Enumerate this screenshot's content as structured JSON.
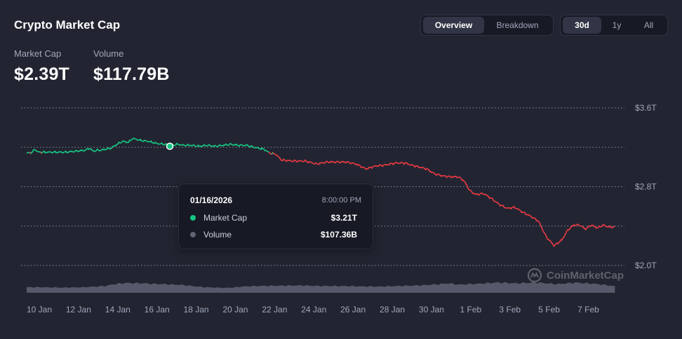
{
  "header": {
    "title": "Crypto Market Cap",
    "stats": [
      {
        "label": "Market Cap",
        "value": "$2.39T"
      },
      {
        "label": "Volume",
        "value": "$117.79B"
      }
    ]
  },
  "view_tabs": {
    "items": [
      "Overview",
      "Breakdown"
    ],
    "active": "Overview"
  },
  "range_tabs": {
    "items": [
      "30d",
      "1y",
      "All"
    ],
    "active": "30d"
  },
  "tooltip": {
    "date": "01/16/2026",
    "time": "8:00:00 PM",
    "rows": [
      {
        "name": "Market Cap",
        "value": "$3.21T"
      },
      {
        "name": "Volume",
        "value": "$107.36B"
      }
    ]
  },
  "watermark": "CoinMarketCap",
  "colors": {
    "background": "#222531",
    "up": "#16c784",
    "down": "#ea3943",
    "volume": "#5f6373",
    "grid": "#8a8fa0"
  },
  "chart_data": {
    "type": "line",
    "y_unit": "T USD",
    "ylim": [
      2.0,
      3.6
    ],
    "y_ticks": [
      {
        "value": 3.6,
        "label": "$3.6T"
      },
      {
        "value": 2.8,
        "label": "$2.8T"
      },
      {
        "value": 2.0,
        "label": "$2.0T"
      }
    ],
    "x_ticks": [
      "10 Jan",
      "12 Jan",
      "14 Jan",
      "16 Jan",
      "18 Jan",
      "20 Jan",
      "22 Jan",
      "24 Jan",
      "26 Jan",
      "28 Jan",
      "30 Jan",
      "1 Feb",
      "3 Feb",
      "5 Feb",
      "7 Feb"
    ],
    "xlim_days": [
      0,
      30.2
    ],
    "baseline": 3.14,
    "grid": true,
    "series": [
      {
        "name": "Market Cap",
        "unit": "T USD",
        "x_days": [
          0,
          0.3,
          0.4,
          0.6,
          1.0,
          1.5,
          2.0,
          2.5,
          3.0,
          3.2,
          3.4,
          3.6,
          3.8,
          4.0,
          4.3,
          4.6,
          4.9,
          5.2,
          5.4,
          5.8,
          6.2,
          6.6,
          7.0,
          7.4,
          7.7,
          8.0,
          8.4,
          8.8,
          9.2,
          9.6,
          10.0,
          10.4,
          10.8,
          11.2,
          11.6,
          12.1,
          12.4,
          12.7,
          13.0,
          13.6,
          14.2,
          14.8,
          15.3,
          15.8,
          16.3,
          16.8,
          17.3,
          17.8,
          18.3,
          18.8,
          19.3,
          19.6,
          20.0,
          20.4,
          20.8,
          21.2,
          21.6,
          22.0,
          22.3,
          22.6,
          22.9,
          23.3,
          23.7,
          24.1,
          24.5,
          24.9,
          25.3,
          25.7,
          26.1,
          26.5,
          26.9,
          27.3,
          27.6,
          27.9,
          28.2,
          28.5,
          28.8,
          29.1,
          29.4,
          29.7,
          30.0
        ],
        "values": [
          3.14,
          3.15,
          3.18,
          3.15,
          3.15,
          3.15,
          3.15,
          3.16,
          3.17,
          3.19,
          3.16,
          3.17,
          3.17,
          3.18,
          3.19,
          3.23,
          3.26,
          3.25,
          3.29,
          3.27,
          3.26,
          3.24,
          3.23,
          3.22,
          3.23,
          3.22,
          3.22,
          3.21,
          3.22,
          3.21,
          3.22,
          3.23,
          3.22,
          3.22,
          3.2,
          3.18,
          3.14,
          3.13,
          3.07,
          3.06,
          3.06,
          3.03,
          3.05,
          3.05,
          3.05,
          3.03,
          2.98,
          3.01,
          3.02,
          3.04,
          3.04,
          3.02,
          3.0,
          2.98,
          2.93,
          2.91,
          2.9,
          2.9,
          2.86,
          2.76,
          2.72,
          2.73,
          2.68,
          2.62,
          2.58,
          2.59,
          2.54,
          2.5,
          2.45,
          2.29,
          2.2,
          2.26,
          2.36,
          2.41,
          2.41,
          2.37,
          2.41,
          2.38,
          2.41,
          2.39,
          2.39
        ]
      },
      {
        "name": "Volume",
        "unit": "B USD",
        "x_days": [
          0,
          1,
          2,
          3,
          4,
          4.5,
          5,
          6,
          6.5,
          7,
          8,
          9,
          10,
          10.5,
          11,
          12,
          13,
          14,
          15,
          16,
          17,
          18,
          19,
          20,
          21,
          21.5,
          22,
          23,
          24,
          25,
          26,
          26.5,
          27,
          28,
          29,
          30
        ],
        "values": [
          70,
          68,
          64,
          70,
          85,
          108,
          122,
          118,
          110,
          108,
          96,
          70,
          62,
          64,
          78,
          86,
          88,
          92,
          84,
          84,
          80,
          78,
          85,
          92,
          106,
          118,
          102,
          112,
          128,
          118,
          128,
          118,
          108,
          126,
          112,
          82
        ]
      }
    ],
    "highlight": {
      "series": "Market Cap",
      "x_day": 7.3,
      "value": 3.21
    }
  }
}
